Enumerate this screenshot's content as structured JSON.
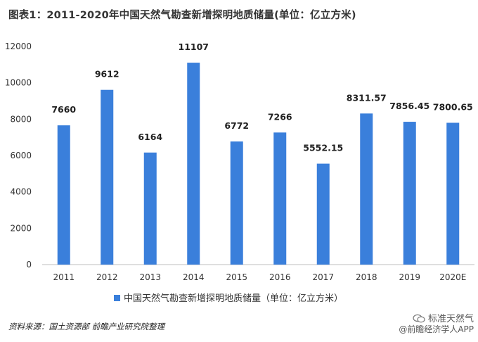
{
  "header": {
    "title": "图表1：2011-2020年中国天然气勘查新增探明地质储量(单位：亿立方米)"
  },
  "chart_data": {
    "type": "bar",
    "categories": [
      "2011",
      "2012",
      "2013",
      "2014",
      "2015",
      "2016",
      "2017",
      "2018",
      "2019",
      "2020E"
    ],
    "series": [
      {
        "name": "中国天然气勘查新增探明地质储量（单位：亿立方米）",
        "values": [
          7660,
          9612,
          6164,
          11107,
          6772,
          7266,
          5552.15,
          8311.57,
          7856.45,
          7800.65
        ],
        "labels": [
          "7660",
          "9612",
          "6164",
          "11107",
          "6772",
          "7266",
          "5552.15",
          "8311.57",
          "7856.45",
          "7800.65"
        ],
        "color": "#3a7fdb"
      }
    ],
    "title": "图表1：2011-2020年中国天然气勘查新增探明地质储量(单位：亿立方米)",
    "xlabel": "",
    "ylabel": "",
    "ylim": [
      0,
      12000
    ],
    "yticks": [
      "0",
      "2000",
      "4000",
      "6000",
      "8000",
      "10000",
      "12000"
    ],
    "grid": false,
    "legend": "bottom"
  },
  "footer": {
    "source": "资料来源：国土资源部 前瞻产业研究院整理",
    "watermark_line1": "标准天然气",
    "watermark_line2": "@前瞻经济学人APP"
  },
  "colors": {
    "bar": "#3a7fdb",
    "axis": "#bfbfbf",
    "text": "#333333"
  }
}
